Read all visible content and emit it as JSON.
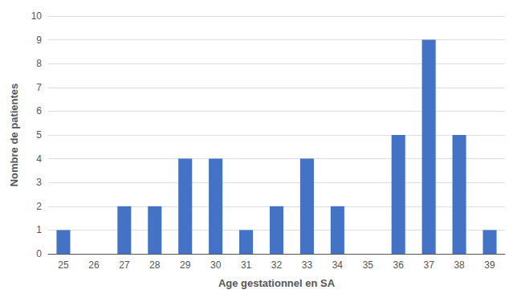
{
  "chart_data": {
    "type": "bar",
    "categories": [
      25,
      26,
      27,
      28,
      29,
      30,
      31,
      32,
      33,
      34,
      35,
      36,
      37,
      38,
      39
    ],
    "values": [
      1,
      0,
      2,
      2,
      4,
      4,
      1,
      2,
      4,
      2,
      0,
      5,
      9,
      5,
      1
    ],
    "color": "#4472C4",
    "xlabel": "Age gestationnel en SA",
    "ylabel": "Nombre de patientes",
    "ylim": [
      0,
      10
    ],
    "yticks": [
      0,
      1,
      2,
      3,
      4,
      5,
      6,
      7,
      8,
      9,
      10
    ],
    "grid": true
  }
}
